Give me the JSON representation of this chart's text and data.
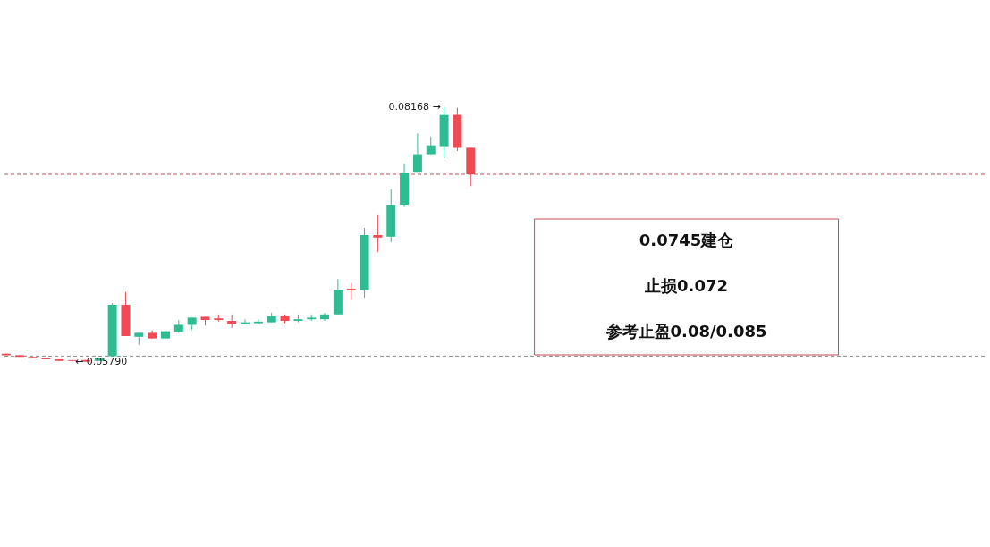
{
  "chart_data": {
    "type": "candlestick",
    "categories": [
      null,
      null,
      null,
      null,
      null,
      null,
      null,
      null,
      null,
      null,
      null,
      null,
      null,
      null,
      null,
      null,
      null,
      null,
      null,
      null,
      null,
      null,
      null,
      null,
      null,
      null,
      null,
      null,
      null,
      null,
      null,
      null,
      null,
      null,
      null,
      null
    ],
    "ohlc": [
      [
        0.05865,
        0.05865,
        0.0585,
        0.0585
      ],
      [
        0.0585,
        0.0585,
        0.05835,
        0.05835
      ],
      [
        0.05835,
        0.05835,
        0.0582,
        0.0582
      ],
      [
        0.05827,
        0.05827,
        0.05812,
        0.05812
      ],
      [
        0.05812,
        0.05812,
        0.05797,
        0.05797
      ],
      [
        0.05805,
        0.05805,
        0.05797,
        0.05797
      ],
      [
        0.05805,
        0.05805,
        0.0579,
        0.0579
      ],
      [
        0.05797,
        0.0582,
        0.05797,
        0.0582
      ],
      [
        0.05842,
        0.06336,
        0.05842,
        0.06321
      ],
      [
        0.06321,
        0.06441,
        0.06029,
        0.06029
      ],
      [
        0.06022,
        0.06059,
        0.05947,
        0.06059
      ],
      [
        0.06059,
        0.06082,
        0.06007,
        0.06007
      ],
      [
        0.06007,
        0.06074,
        0.06007,
        0.06074
      ],
      [
        0.06067,
        0.06179,
        0.06059,
        0.06134
      ],
      [
        0.06134,
        0.06201,
        0.06089,
        0.06201
      ],
      [
        0.06209,
        0.06209,
        0.06127,
        0.06179
      ],
      [
        0.06194,
        0.06231,
        0.06164,
        0.06179
      ],
      [
        0.06171,
        0.06231,
        0.06104,
        0.06142
      ],
      [
        0.06142,
        0.06186,
        0.06142,
        0.06157
      ],
      [
        0.06149,
        0.06186,
        0.06149,
        0.06164
      ],
      [
        0.06157,
        0.06246,
        0.06157,
        0.06216
      ],
      [
        0.06216,
        0.06231,
        0.06149,
        0.06171
      ],
      [
        0.06171,
        0.06231,
        0.06157,
        0.06186
      ],
      [
        0.06186,
        0.06231,
        0.06171,
        0.06201
      ],
      [
        0.06186,
        0.06246,
        0.06171,
        0.06231
      ],
      [
        0.06231,
        0.0656,
        0.06231,
        0.06463
      ],
      [
        0.06471,
        0.06523,
        0.06366,
        0.06456
      ],
      [
        0.06456,
        0.07039,
        0.06388,
        0.06972
      ],
      [
        0.06972,
        0.07166,
        0.06815,
        0.06949
      ],
      [
        0.06957,
        0.07398,
        0.06905,
        0.07256
      ],
      [
        0.07256,
        0.07638,
        0.07234,
        0.07555
      ],
      [
        0.07563,
        0.07922,
        0.07563,
        0.07727
      ],
      [
        0.07727,
        0.07892,
        0.07727,
        0.0781
      ],
      [
        0.07802,
        0.08168,
        0.0769,
        0.08094
      ],
      [
        0.08094,
        0.0816,
        0.07757,
        0.07787
      ],
      [
        0.07787,
        0.07787,
        0.07428,
        0.0754
      ]
    ],
    "colors": [
      "#ef4b55",
      "#ef4b55",
      "#ef4b55",
      "#ef4b55",
      "#ef4b55",
      "#ef4b55",
      "#ef4b55",
      "#2ebd93",
      "#2ebd93",
      "#ef4b55",
      "#2ebd93",
      "#ef4b55",
      "#2ebd93",
      "#2ebd93",
      "#2ebd93",
      "#ef4b55",
      "#ef4b55",
      "#ef4b55",
      "#2ebd93",
      "#2ebd93",
      "#2ebd93",
      "#ef4b55",
      "#2ebd93",
      "#2ebd93",
      "#2ebd93",
      "#2ebd93",
      "#ef4b55",
      "#2ebd93",
      "#ef4b55",
      "#2ebd93",
      "#2ebd93",
      "#2ebd93",
      "#2ebd93",
      "#2ebd93",
      "#ef4b55",
      "#ef4b55"
    ],
    "ref_lines": [
      {
        "axis": "y",
        "value": 0.0754,
        "color": "#c0505a",
        "line_style": "dashed"
      },
      {
        "axis": "y",
        "value": 0.05842,
        "color": "#888888",
        "line_style": "dashed"
      }
    ],
    "annotations": [
      "0.08168 →",
      "← 0.05790",
      "0.0745建仓",
      "止损0.072",
      "参考止盈0.08/0.085"
    ],
    "grid": false
  }
}
